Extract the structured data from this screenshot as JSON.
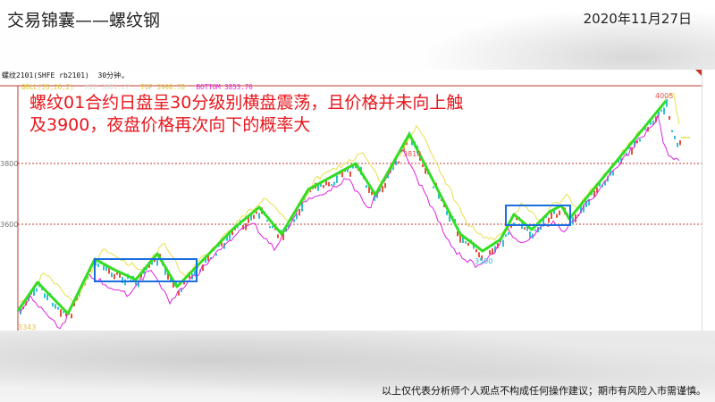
{
  "header": {
    "title": "交易锦囊——螺纹钢",
    "date": "2020年11月27日"
  },
  "chart_header": {
    "symbol": "螺纹2101(SHFE rb2101)",
    "period": "30分钟",
    "period_icon": "chevron-down-icon"
  },
  "indicator": {
    "name": "BOLL(26,26,2)",
    "mid": "MID 3881.27",
    "top": "TOP 3908.78",
    "bottom": "BOTTOM 3853.76"
  },
  "axis": {
    "ticks": [
      "3800",
      "3600"
    ]
  },
  "annotations": {
    "high": "4005",
    "mid_high": "3818",
    "low": "3500",
    "start_low": "3343"
  },
  "note": {
    "line1": "螺纹01合约日盘呈30分级别横盘震荡，且价格并未向上触",
    "line2": "及3900，夜盘价格再次向下的概率大"
  },
  "footer": {
    "disclaimer": "以上仅代表分析师个人观点不构成任何操作建议；期市有风险入市需谨慎。"
  },
  "colors": {
    "trend_line": "#33dd22",
    "box": "#1a6fe0",
    "note": "#e8151b",
    "upper_band": "#e6e04a",
    "lower_band": "#dd22dd",
    "grid": "#c0392b"
  }
}
